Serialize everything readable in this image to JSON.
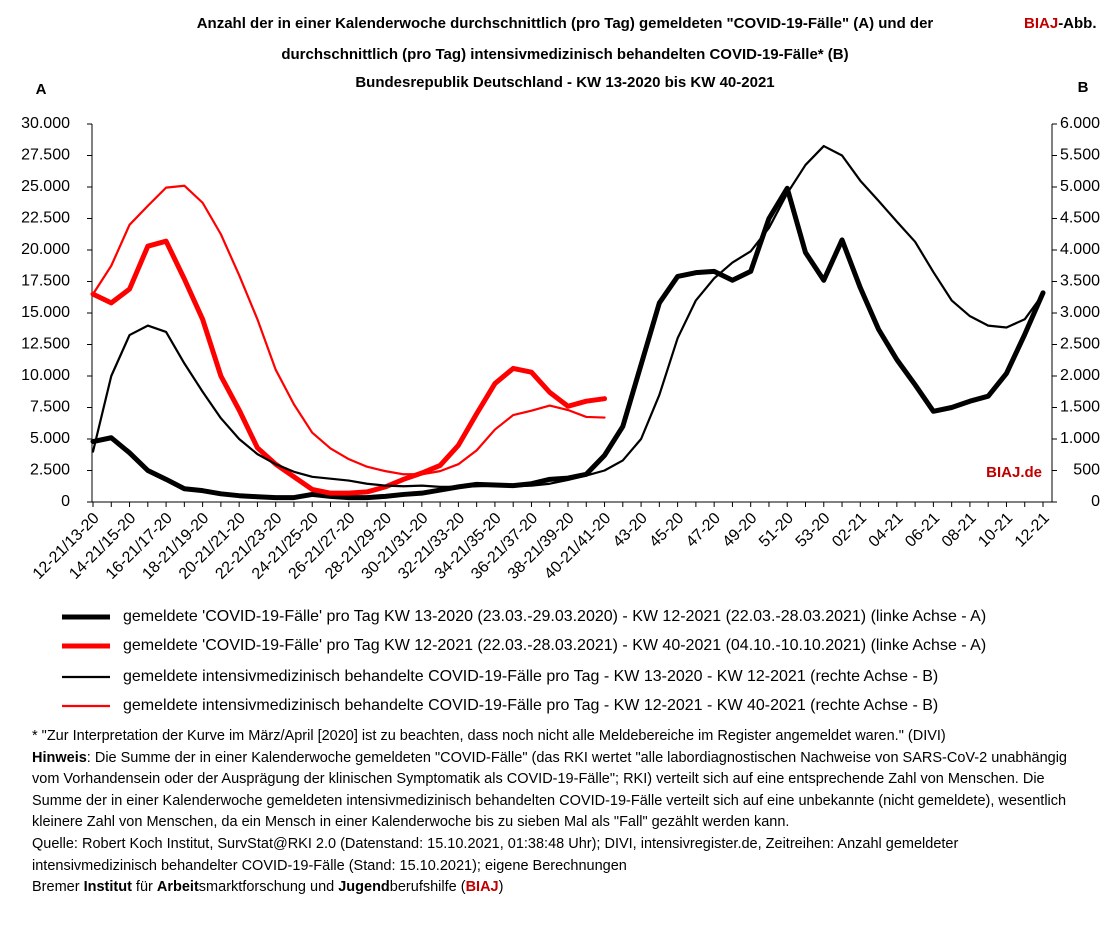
{
  "chart_data": {
    "type": "line",
    "title": [
      "Anzahl der in einer Kalenderwoche durchschnittlich (pro Tag) gemeldeten \"COVID-19-Fälle\" (A) und der",
      "durchschnittlich (pro Tag) intensivmedizinisch behandelten COVID-19-Fälle* (B)",
      "Bundesrepublik Deutschland - KW 13-2020 bis KW 40-2021"
    ],
    "badge": [
      "BIAJ",
      "-Abb."
    ],
    "annotation": "BIAJ.de",
    "y_label": "A",
    "y2_label": "B",
    "categories": [
      "12-21/13-20",
      null,
      "14-21/15-20",
      null,
      "16-21/17-20",
      null,
      "18-21/19-20",
      null,
      "20-21/21-20",
      null,
      "22-21/23-20",
      null,
      "24-21/25-20",
      null,
      "26-21/27-20",
      null,
      "28-21/29-20",
      null,
      "30-21/31-20",
      null,
      "32-21/33-20",
      null,
      "34-21/35-20",
      null,
      "36-21/37-20",
      null,
      "38-21/39-20",
      null,
      "40-21/41-20",
      null,
      "43-20",
      null,
      "45-20",
      null,
      "47-20",
      null,
      "49-20",
      null,
      "51-20",
      null,
      "53-20",
      null,
      "02-21",
      null,
      "04-21",
      null,
      "06-21",
      null,
      "08-21",
      null,
      "10-21",
      null,
      "12-21"
    ],
    "ylim": [
      0,
      30000
    ],
    "yticks": [
      0,
      {
        "value": 2500,
        "label": "2.500"
      },
      {
        "value": 5000,
        "label": "5.000"
      },
      {
        "value": 7500,
        "label": "7.500"
      },
      {
        "value": 10000,
        "label": "10.000"
      },
      {
        "value": 12500,
        "label": "12.500"
      },
      {
        "value": 15000,
        "label": "15.000"
      },
      {
        "value": 17500,
        "label": "17.500"
      },
      {
        "value": 20000,
        "label": "20.000"
      },
      {
        "value": 22500,
        "label": "22.500"
      },
      {
        "value": 25000,
        "label": "25.000"
      },
      {
        "value": 27500,
        "label": "27.500"
      },
      {
        "value": 30000,
        "label": "30.000"
      }
    ],
    "y2lim": [
      0,
      6000
    ],
    "y2ticks": [
      0,
      500,
      {
        "value": 1000,
        "label": "1.000"
      },
      {
        "value": 1500,
        "label": "1.500"
      },
      {
        "value": 2000,
        "label": "2.000"
      },
      {
        "value": 2500,
        "label": "2.500"
      },
      {
        "value": 3000,
        "label": "3.000"
      },
      {
        "value": 3500,
        "label": "3.500"
      },
      {
        "value": 4000,
        "label": "4.000"
      },
      {
        "value": 4500,
        "label": "4.500"
      },
      {
        "value": 5000,
        "label": "5.000"
      },
      {
        "value": 5500,
        "label": "5.500"
      },
      {
        "value": 6000,
        "label": "6.000"
      }
    ],
    "grid": false,
    "series": [
      {
        "name": "gemeldete 'COVID-19-Fälle' pro Tag KW 13-2020 (23.03.-29.03.2020) - KW 12-2021 (22.03.-28.03.2021) (linke Achse - A)",
        "color": "#000000",
        "line_width": 5,
        "axis": "y",
        "values": [
          4800,
          5100,
          3900,
          2500,
          1800,
          1050,
          900,
          650,
          500,
          420,
          350,
          350,
          600,
          450,
          350,
          350,
          450,
          600,
          700,
          950,
          1200,
          1400,
          1350,
          1300,
          1450,
          1800,
          1900,
          2200,
          3700,
          6000,
          10900,
          15800,
          17900,
          18200,
          18300,
          17600,
          18300,
          22500,
          24900,
          19800,
          17600,
          20800,
          17000,
          13700,
          11300,
          9300,
          7200,
          7500,
          8000,
          8400,
          10200,
          13300,
          16600
        ]
      },
      {
        "name": "gemeldete 'COVID-19-Fälle' pro Tag KW 12-2021 (22.03.-28.03.2021) - KW 40-2021 (04.10.-10.10.2021) (linke Achse - A)",
        "color": "#ff0000",
        "line_width": 5,
        "axis": "y",
        "values": [
          16500,
          15800,
          16900,
          20300,
          20700,
          17700,
          14500,
          10000,
          7300,
          4300,
          3000,
          2000,
          1000,
          700,
          700,
          800,
          1200,
          1800,
          2300,
          2900,
          4500,
          7000,
          9400,
          10600,
          10300,
          8700,
          7600,
          8000,
          8200,
          null,
          null,
          null,
          null,
          null,
          null,
          null,
          null,
          null,
          null,
          null,
          null,
          null,
          null,
          null,
          null,
          null,
          null,
          null,
          null,
          null,
          null,
          null,
          null
        ]
      },
      {
        "name": "gemeldete intensivmedizinisch behandelte COVID-19-Fälle pro Tag - KW 13-2020 - KW 12-2021 (rechte Achse - B)",
        "color": "#000000",
        "line_width": 2.2,
        "axis": "y2",
        "values": [
          800,
          2000,
          2650,
          2800,
          2700,
          2200,
          1750,
          1330,
          1000,
          760,
          600,
          480,
          400,
          370,
          340,
          290,
          260,
          250,
          260,
          240,
          240,
          250,
          260,
          250,
          260,
          290,
          350,
          420,
          500,
          660,
          1000,
          1700,
          2600,
          3200,
          3550,
          3800,
          3980,
          4350,
          4900,
          5350,
          5650,
          5500,
          5100,
          4780,
          4450,
          4130,
          3650,
          3200,
          2950,
          2800,
          2770,
          2900,
          3300
        ]
      },
      {
        "name": "gemeldete intensivmedizinisch behandelte COVID-19-Fälle pro Tag - KW 12-2021 - KW 40-2021 (rechte Achse - B)",
        "color": "#ff0000",
        "line_width": 2.2,
        "axis": "y2",
        "values": [
          3300,
          3750,
          4400,
          4700,
          4990,
          5020,
          4750,
          4250,
          3600,
          2900,
          2100,
          1550,
          1100,
          850,
          680,
          560,
          490,
          440,
          440,
          490,
          600,
          820,
          1150,
          1380,
          1450,
          1530,
          1460,
          1350,
          1340,
          null,
          null,
          null,
          null,
          null,
          null,
          null,
          null,
          null,
          null,
          null,
          null,
          null,
          null,
          null,
          null,
          null,
          null,
          null,
          null,
          null,
          null,
          null,
          null
        ]
      }
    ]
  },
  "notes": {
    "footnote": "* \"Zur Interpretation der Kurve im März/April [2020] ist zu beachten, dass noch nicht alle Meldebereiche im Register angemeldet waren.\" (DIVI)",
    "hint": [
      "Hinweis",
      ": Die Summe der in einer Kalenderwoche gemeldeten \"COVID-Fälle\" (das RKI wertet \"alle labordiagnostischen Nachweise von SARS-CoV-2 unabhängig vom Vorhandensein oder der Ausprägung der klinischen Symptomatik als COVID-19-Fälle\"; RKI) verteilt sich auf eine entsprechende Zahl von Menschen. Die Summe der in einer Kalenderwoche gemeldeten intensivmedizinisch behandelten COVID-19-Fälle verteilt sich auf eine unbekannte (nicht gemeldete), wesentlich kleinere Zahl von Menschen, da ein Mensch in einer Kalenderwoche bis zu sieben Mal als \"Fall\" gezählt werden kann."
    ],
    "source": "Quelle: Robert Koch Institut, SurvStat@RKI 2.0 (Datenstand: 15.10.2021, 01:38:48 Uhr); DIVI, intensivregister.de, Zeitreihen: Anzahl gemeldeter intensivmedizinisch behandelter COVID-19-Fälle (Stand: 15.10.2021); eigene Berechnungen",
    "institute": [
      "Bremer ",
      "Institut",
      " für ",
      "Arbeit",
      "smarktforschung und ",
      "Jugend",
      "berufshilfe (",
      "BIAJ",
      ")"
    ]
  }
}
